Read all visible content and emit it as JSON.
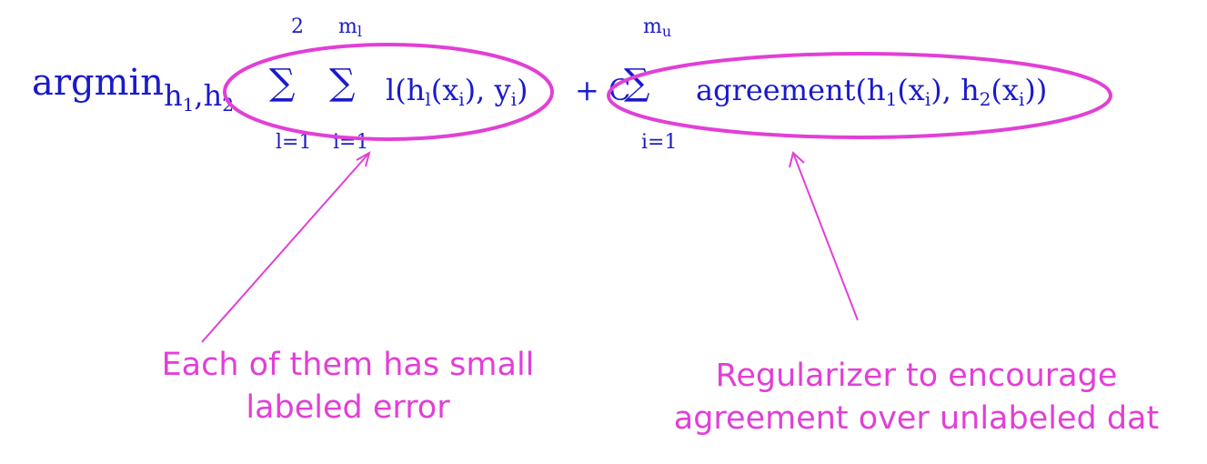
{
  "formula": {
    "argmin": "argmin",
    "argmin_sub": "h",
    "argmin_sub_1": "1",
    "argmin_comma": ",",
    "argmin_sub_h2": "h",
    "argmin_sub_2": "2",
    "sum1_upper": "2",
    "sum1_symbol": "∑",
    "sum1_lower": "l=1",
    "sum2_upper": "m",
    "sum2_upper_sub": "l",
    "sum2_symbol": "∑",
    "sum2_lower": "i=1",
    "loss_expr_a": "l(h",
    "loss_expr_a_sub": "l",
    "loss_expr_b": "(x",
    "loss_expr_b_sub": "i",
    "loss_expr_c": "), y",
    "loss_expr_c_sub": "i",
    "loss_expr_d": ")",
    "plus_c": "+ C",
    "sum3_upper": "m",
    "sum3_upper_sub": "u",
    "sum3_symbol": "∑",
    "sum3_lower": "i=1",
    "agreement_a": "agreement(h",
    "agreement_a_sub": "1",
    "agreement_b": "(x",
    "agreement_b_sub": "i",
    "agreement_c": "), h",
    "agreement_c_sub": "2",
    "agreement_d": "(x",
    "agreement_d_sub": "i",
    "agreement_e": "))"
  },
  "annotations": {
    "left_line1": "Each of them has small",
    "left_line2": "labeled error",
    "right_line1": "Regularizer to encourage",
    "right_line2": "agreement over unlabeled dat"
  },
  "colors": {
    "formula": "#1a1acc",
    "annotation": "#e23fd6"
  }
}
